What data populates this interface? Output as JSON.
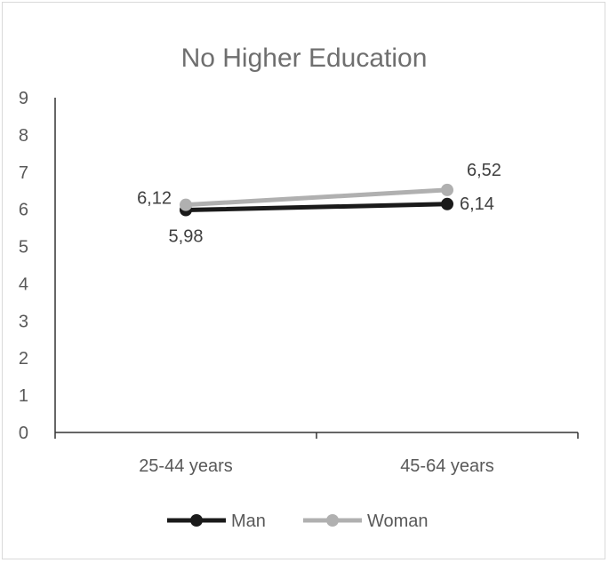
{
  "chart_data": {
    "type": "line",
    "title": "No Higher Education",
    "categories": [
      "25-44 years",
      "45-64 years"
    ],
    "y_ticks": [
      "0",
      "1",
      "2",
      "3",
      "4",
      "5",
      "6",
      "7",
      "8",
      "9"
    ],
    "ylim": [
      0,
      9
    ],
    "grid": false,
    "legend_position": "bottom",
    "series": [
      {
        "name": "Man",
        "values": [
          5.98,
          6.14
        ],
        "labels": [
          "5,98",
          "6,14"
        ],
        "color": "#1a1a1a"
      },
      {
        "name": "Woman",
        "values": [
          6.12,
          6.52
        ],
        "labels": [
          "6,12",
          "6,52"
        ],
        "color": "#b0b0b0"
      }
    ]
  }
}
